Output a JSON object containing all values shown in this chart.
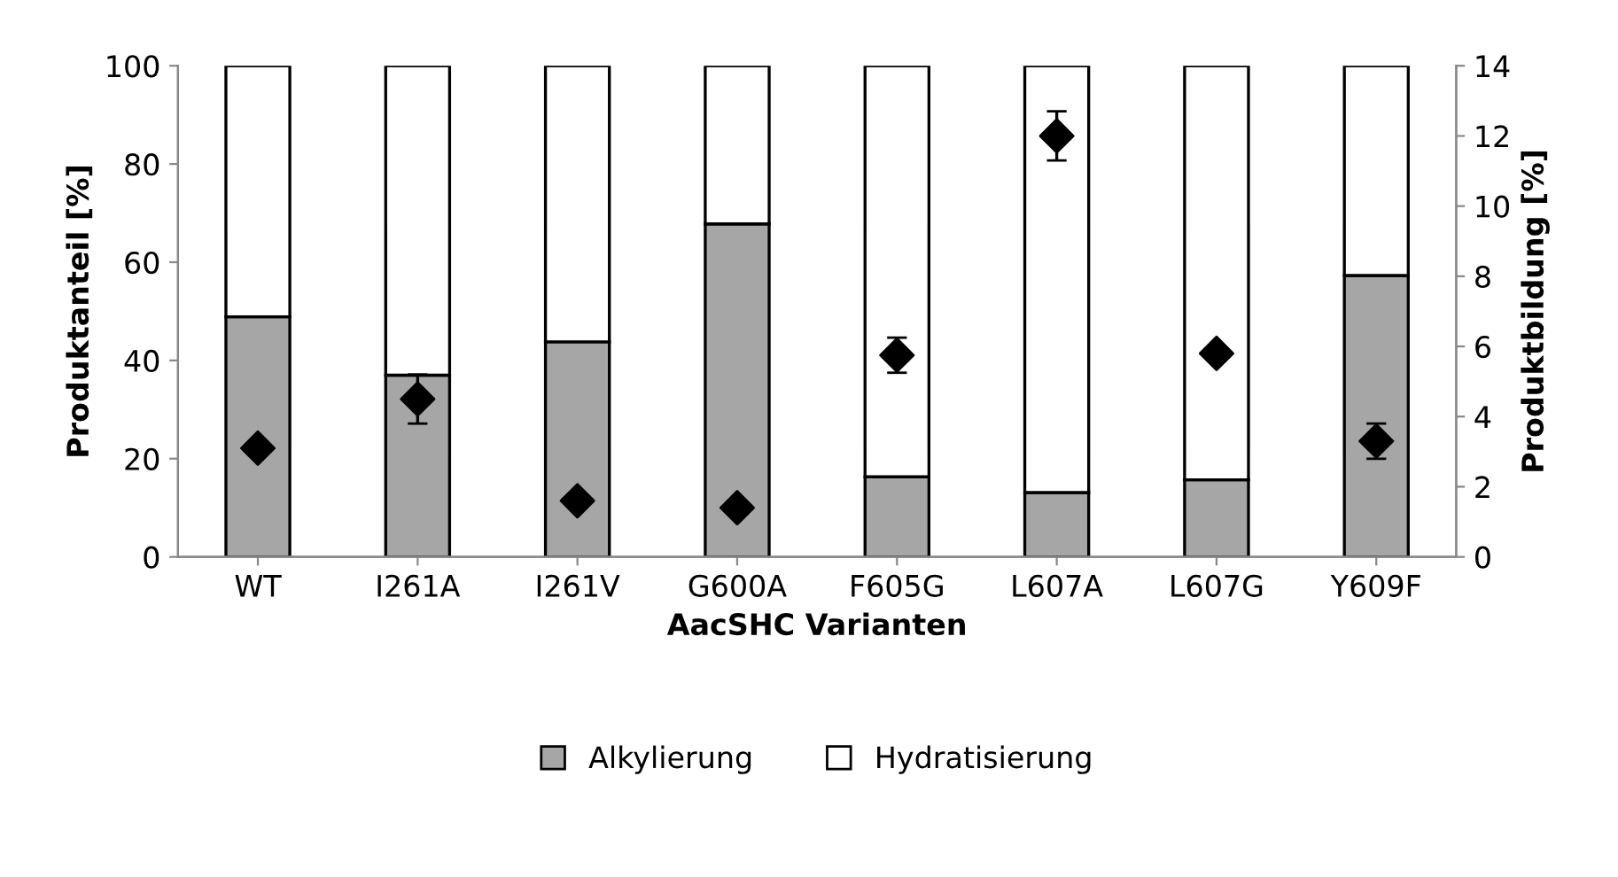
{
  "chart_data": {
    "type": "bar",
    "stacked": true,
    "xlabel": "AacSHC Varianten",
    "ylabel": "Produktanteil [%]",
    "y2label": "Produktbildung [%]",
    "categories": [
      "WT",
      "I261A",
      "I261V",
      "G600A",
      "F605G",
      "L607A",
      "L607G",
      "Y609F"
    ],
    "series": [
      {
        "name": "Alkylierung",
        "color": "#a6a6a6",
        "values": [
          48.9,
          37.0,
          43.8,
          67.8,
          16.3,
          13.1,
          15.7,
          57.3
        ]
      },
      {
        "name": "Hydratisierung",
        "color": "#ffffff",
        "values": [
          51.1,
          63.0,
          56.2,
          32.2,
          83.7,
          86.9,
          84.3,
          42.7
        ]
      },
      {
        "type": "scatter",
        "axis": "y2",
        "color": "#000000",
        "marker": "diamond",
        "values": [
          3.1,
          4.5,
          1.6,
          1.4,
          5.75,
          12.0,
          5.8,
          3.3
        ],
        "errors": [
          null,
          0.7,
          null,
          null,
          0.5,
          0.7,
          null,
          0.5
        ]
      }
    ],
    "ylim": [
      0,
      100
    ],
    "yticks": [
      0,
      20,
      40,
      60,
      80,
      100
    ],
    "y2lim": [
      0,
      14
    ],
    "y2ticks": [
      0,
      2,
      4,
      6,
      8,
      10,
      12,
      14
    ],
    "grid": false,
    "legend": "bottom"
  }
}
